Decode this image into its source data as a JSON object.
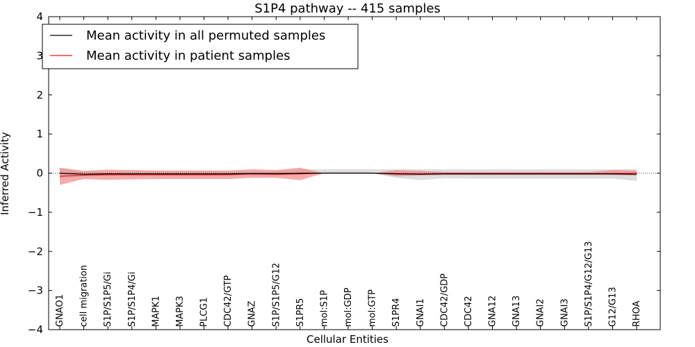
{
  "chart_data": {
    "type": "line",
    "title": "S1P4 pathway -- 415 samples",
    "xlabel": "Cellular Entities",
    "ylabel": "Inferred Activity",
    "ylim": [
      -4,
      4
    ],
    "yticks": [
      4,
      3,
      2,
      1,
      0,
      -1,
      -2,
      -3,
      -4
    ],
    "ytick_labels": [
      "4",
      "3",
      "2",
      "1",
      "0",
      "−1",
      "−2",
      "−3",
      "−4"
    ],
    "categories": [
      "GNAO1",
      "cell migration",
      "S1P/S1P5/Gi",
      "S1P/S1P4/Gi",
      "MAPK1",
      "MAPK3",
      "PLCG1",
      "CDC42/GTP",
      "GNAZ",
      "S1P/S1P5/G12",
      "S1PR5",
      "mol:S1P",
      "mol:GDP",
      "mol:GTP",
      "S1PR4",
      "GNAI1",
      "CDC42/GDP",
      "CDC42",
      "GNA12",
      "GNA13",
      "GNAI2",
      "GNAI3",
      "S1P/S1P4/G12/G13",
      "G12/G13",
      "RHOA"
    ],
    "legend_position": "top-left",
    "series": [
      {
        "name": "Mean activity in all permuted samples",
        "color": "#000000",
        "values": [
          0.0,
          -0.03,
          -0.02,
          -0.02,
          -0.02,
          -0.02,
          -0.02,
          -0.02,
          -0.01,
          -0.01,
          0.0,
          0.0,
          0.0,
          0.0,
          -0.02,
          -0.03,
          -0.02,
          -0.02,
          -0.02,
          -0.02,
          -0.02,
          -0.02,
          -0.02,
          -0.02,
          -0.03
        ],
        "lower": [
          -0.13,
          -0.09,
          -0.08,
          -0.08,
          -0.08,
          -0.08,
          -0.08,
          -0.08,
          -0.07,
          -0.07,
          -0.03,
          0.0,
          0.0,
          0.0,
          -0.12,
          -0.18,
          -0.13,
          -0.14,
          -0.14,
          -0.14,
          -0.14,
          -0.14,
          -0.14,
          -0.14,
          -0.2
        ],
        "upper": [
          0.13,
          0.03,
          0.04,
          0.04,
          0.04,
          0.04,
          0.04,
          0.04,
          0.05,
          0.05,
          0.1,
          0.1,
          0.1,
          0.1,
          0.1,
          0.1,
          0.1,
          0.1,
          0.1,
          0.1,
          0.1,
          0.1,
          0.1,
          0.1,
          0.1
        ],
        "band_color": "#c8c8c8"
      },
      {
        "name": "Mean activity in patient samples",
        "color": "#e31a1c",
        "values": [
          -0.08,
          -0.05,
          -0.04,
          -0.04,
          -0.04,
          -0.04,
          -0.04,
          -0.04,
          -0.02,
          -0.03,
          -0.02,
          0.0,
          0.0,
          0.0,
          -0.01,
          -0.02,
          -0.01,
          -0.01,
          -0.01,
          -0.01,
          -0.01,
          -0.01,
          -0.01,
          -0.01,
          0.0
        ],
        "lower": [
          -0.3,
          -0.15,
          -0.17,
          -0.16,
          -0.15,
          -0.15,
          -0.15,
          -0.15,
          -0.12,
          -0.12,
          -0.18,
          0.0,
          0.0,
          0.0,
          -0.08,
          -0.06,
          -0.05,
          -0.05,
          -0.05,
          -0.05,
          -0.05,
          -0.05,
          -0.05,
          -0.05,
          -0.06
        ],
        "upper": [
          0.14,
          0.06,
          0.09,
          0.08,
          0.07,
          0.07,
          0.07,
          0.07,
          0.1,
          0.08,
          0.14,
          0.0,
          0.0,
          0.0,
          0.08,
          0.06,
          0.03,
          0.03,
          0.03,
          0.03,
          0.03,
          0.03,
          0.03,
          0.08,
          0.07
        ],
        "band_color": "#f08080"
      }
    ]
  }
}
